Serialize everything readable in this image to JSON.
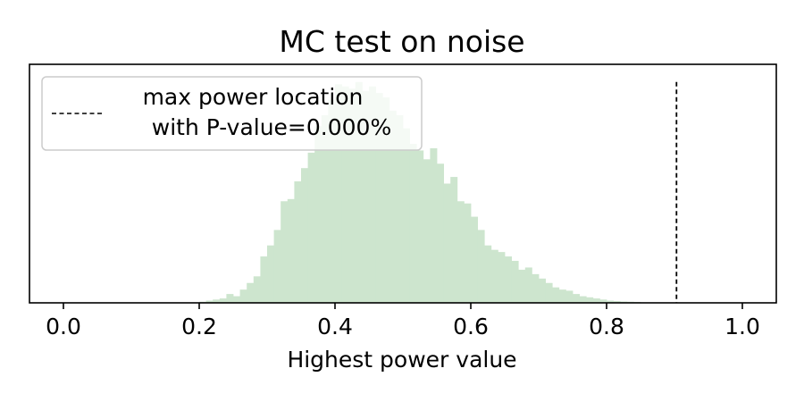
{
  "chart_data": {
    "type": "bar",
    "title": "MC test on noise",
    "xlabel": "Highest power value",
    "ylabel": "",
    "xlim": [
      -0.05,
      1.05
    ],
    "ylim": [
      0,
      1.08
    ],
    "xticks": [
      "0.0",
      "0.2",
      "0.4",
      "0.6",
      "0.8",
      "1.0"
    ],
    "xtick_values": [
      0.0,
      0.2,
      0.4,
      0.6,
      0.8,
      1.0
    ],
    "yticks_visible": false,
    "grid": false,
    "histogram": {
      "bin_start": 0.2,
      "bin_width": 0.01,
      "counts": [
        0.005,
        0.01,
        0.015,
        0.02,
        0.04,
        0.03,
        0.06,
        0.09,
        0.12,
        0.21,
        0.26,
        0.33,
        0.46,
        0.47,
        0.55,
        0.61,
        0.68,
        0.8,
        0.85,
        0.92,
        0.99,
        0.98,
        0.97,
        1.0,
        0.96,
        0.98,
        0.95,
        0.93,
        0.87,
        0.85,
        0.79,
        0.72,
        0.69,
        0.65,
        0.7,
        0.63,
        0.54,
        0.57,
        0.46,
        0.45,
        0.39,
        0.33,
        0.26,
        0.24,
        0.23,
        0.21,
        0.19,
        0.15,
        0.16,
        0.13,
        0.11,
        0.09,
        0.07,
        0.06,
        0.055,
        0.04,
        0.03,
        0.025,
        0.02,
        0.015,
        0.01,
        0.008,
        0.006,
        0.005,
        0.004,
        0.002
      ],
      "color": "#cde5ce"
    },
    "vline": {
      "x": 0.903,
      "style": "dashed",
      "color": "#000000"
    },
    "legend": {
      "placement": "upper left",
      "label_line1": "max power location",
      "label_line2": "with P-value=0.000%"
    }
  }
}
